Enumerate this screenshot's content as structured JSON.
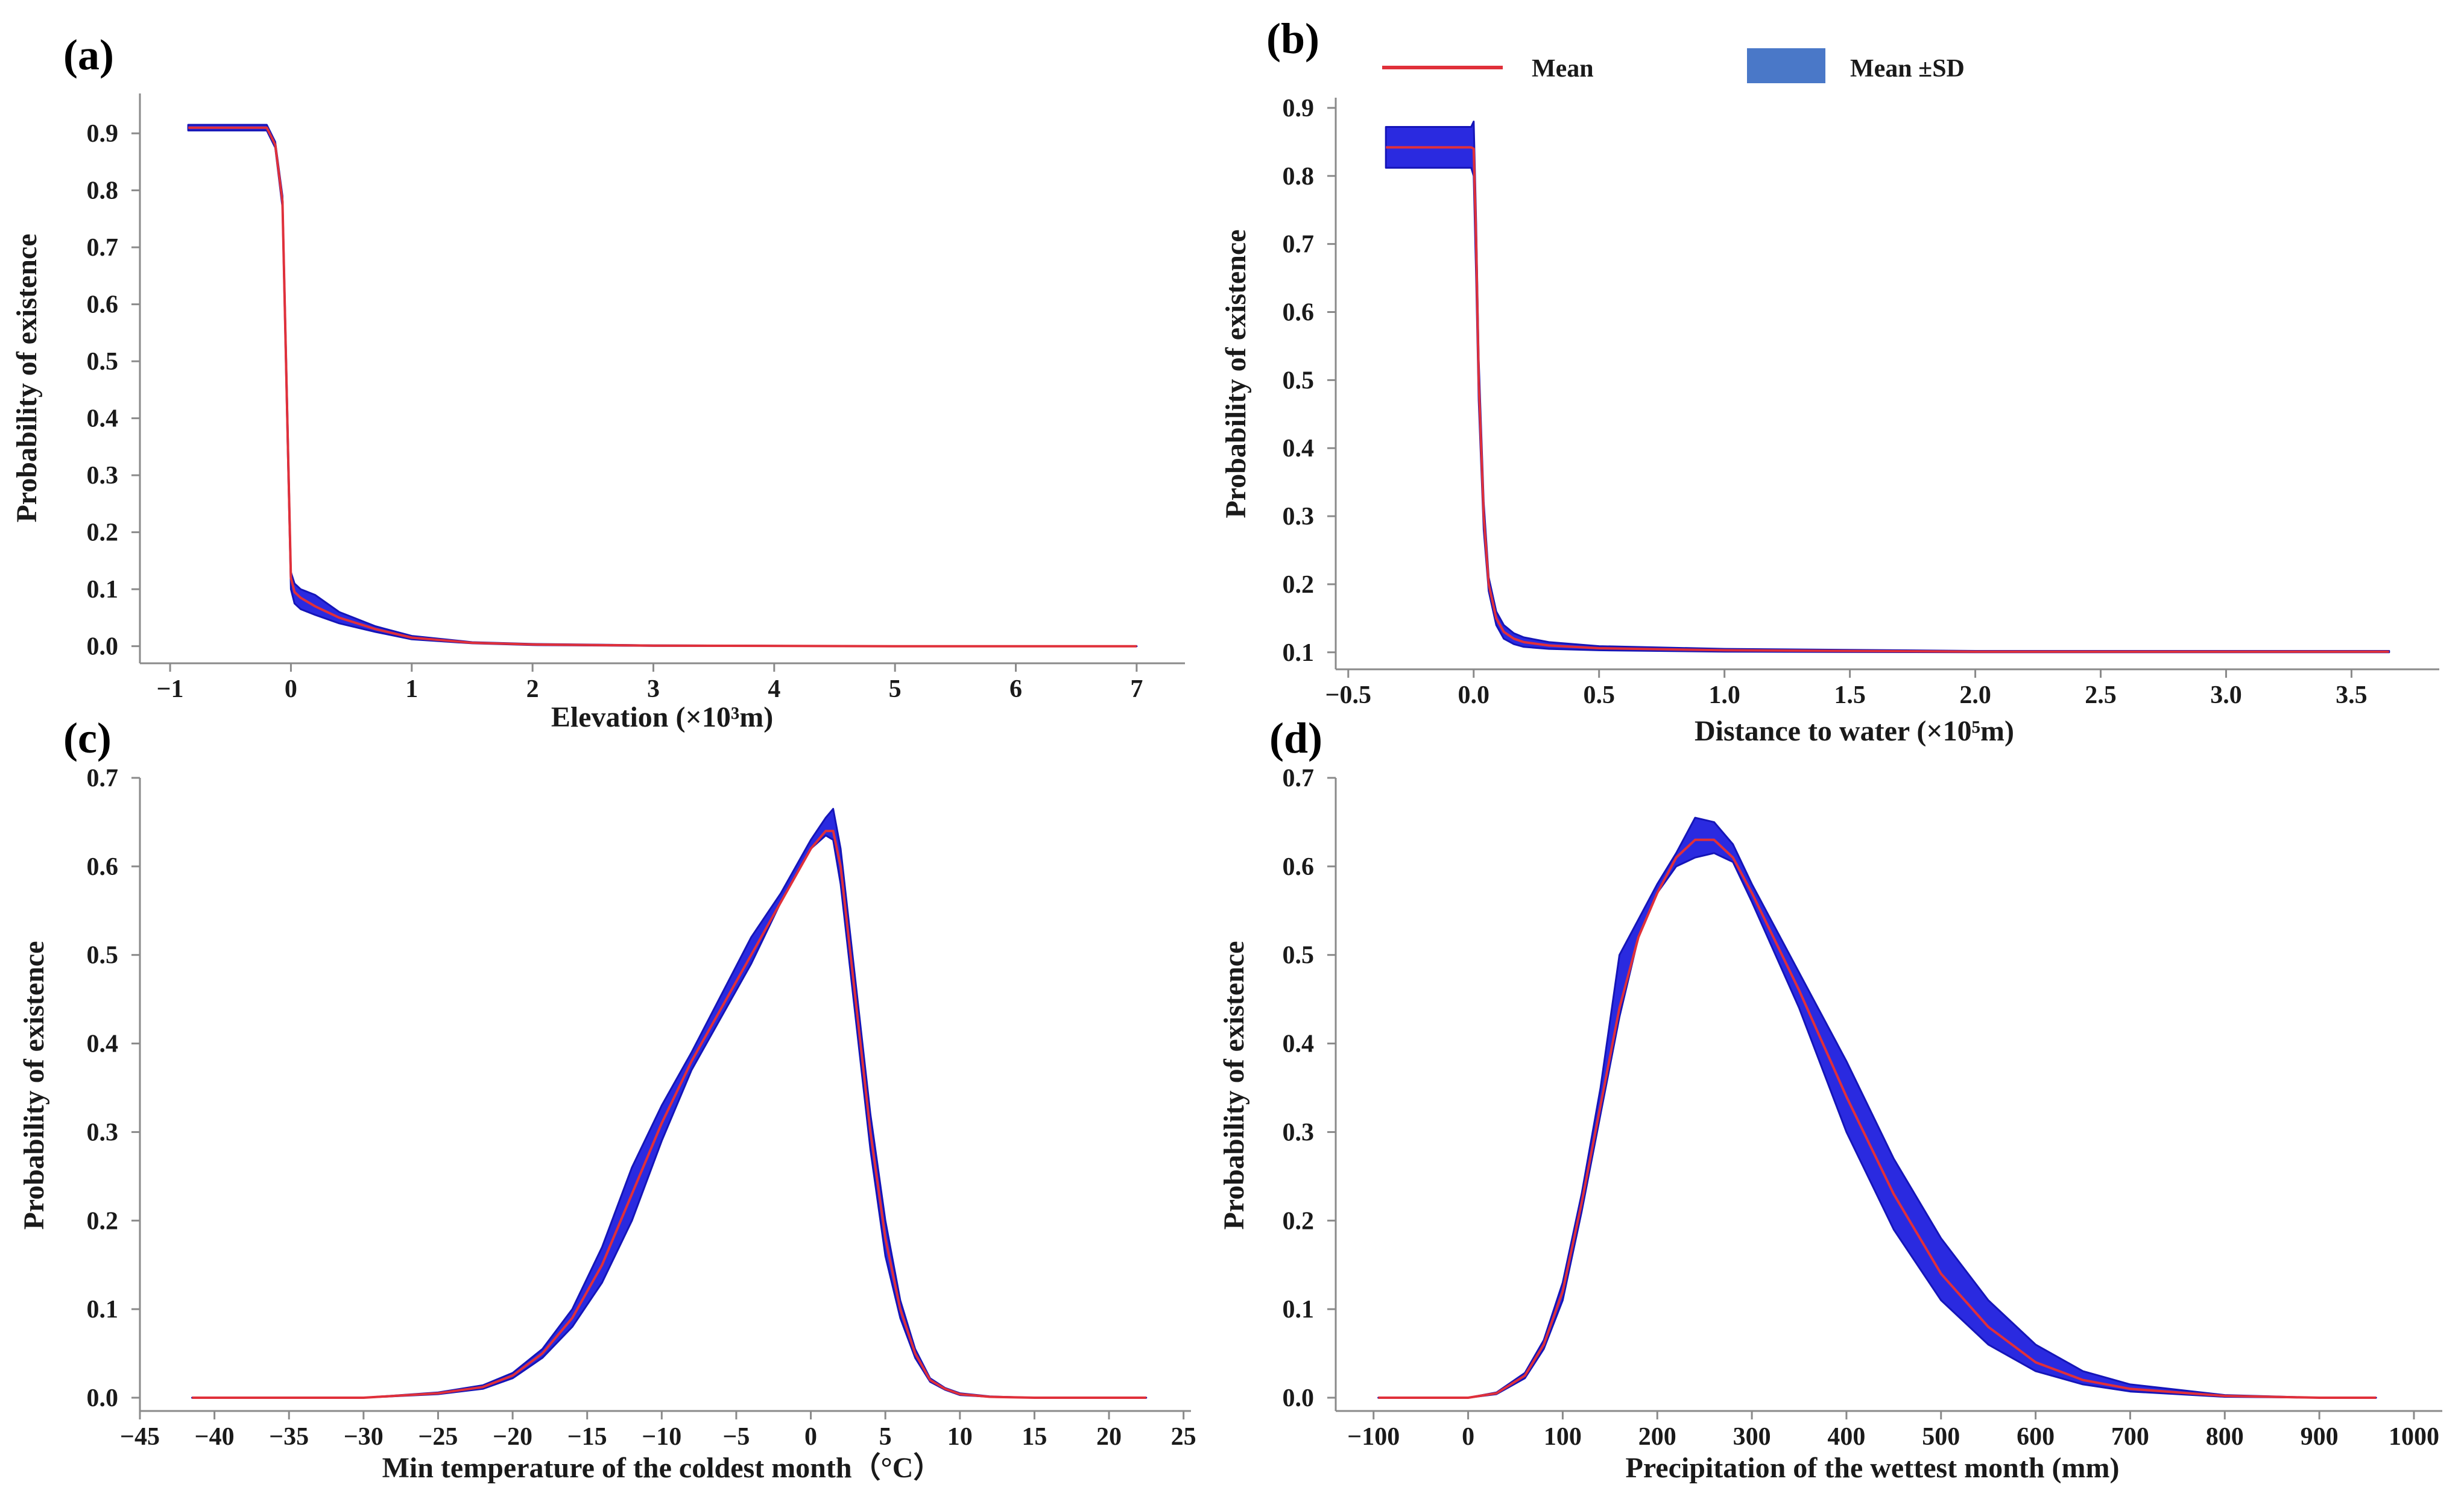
{
  "colors": {
    "mean_line": "#e0303a",
    "sd_band": "#2a2ae0",
    "sd_band_edge": "#1515b8",
    "legend_band": "#4a78c8"
  },
  "legend": {
    "mean_label": "Mean",
    "sd_label": "Mean ±SD"
  },
  "chart_data": [
    {
      "id": "a",
      "panel_label": "(a)",
      "type": "area",
      "xlabel": "Elevation (×10³m)",
      "ylabel": "Probability of existence",
      "xlim": [
        -1.25,
        7.4
      ],
      "ylim": [
        -0.03,
        0.97
      ],
      "xticks": [
        -1,
        0,
        1,
        2,
        3,
        4,
        5,
        6,
        7
      ],
      "xtick_labels": [
        "−1",
        "0",
        "1",
        "2",
        "3",
        "4",
        "5",
        "6",
        "7"
      ],
      "yticks": [
        0.0,
        0.1,
        0.2,
        0.3,
        0.4,
        0.5,
        0.6,
        0.7,
        0.8,
        0.9
      ],
      "ytick_labels": [
        "0.0",
        "0.1",
        "0.2",
        "0.3",
        "0.4",
        "0.5",
        "0.6",
        "0.7",
        "0.8",
        "0.9"
      ],
      "series": [
        {
          "name": "Mean",
          "x": [
            -0.85,
            -0.5,
            -0.2,
            -0.13,
            -0.07,
            -0.03,
            0.0,
            0.03,
            0.08,
            0.2,
            0.4,
            0.7,
            1.0,
            1.5,
            2.0,
            3.0,
            5.0,
            7.0
          ],
          "mean": [
            0.91,
            0.91,
            0.91,
            0.88,
            0.78,
            0.4,
            0.12,
            0.095,
            0.085,
            0.07,
            0.05,
            0.03,
            0.015,
            0.006,
            0.003,
            0.001,
            0.0,
            0.0
          ],
          "lower": [
            0.905,
            0.905,
            0.905,
            0.875,
            0.77,
            0.38,
            0.1,
            0.075,
            0.065,
            0.055,
            0.04,
            0.025,
            0.012,
            0.005,
            0.002,
            0.0005,
            0.0,
            0.0
          ],
          "upper": [
            0.915,
            0.915,
            0.915,
            0.885,
            0.79,
            0.42,
            0.13,
            0.11,
            0.1,
            0.09,
            0.06,
            0.035,
            0.018,
            0.007,
            0.004,
            0.0015,
            0.0,
            0.0
          ]
        }
      ]
    },
    {
      "id": "b",
      "panel_label": "(b)",
      "type": "area",
      "xlabel": "Distance to water (×10⁵m)",
      "ylabel": "Probability of existence",
      "xlim": [
        -0.55,
        3.85
      ],
      "ylim": [
        0.075,
        0.915
      ],
      "xticks": [
        -0.5,
        0.0,
        0.5,
        1.0,
        1.5,
        2.0,
        2.5,
        3.0,
        3.5
      ],
      "xtick_labels": [
        "−0.5",
        "0.0",
        "0.5",
        "1.0",
        "1.5",
        "2.0",
        "2.5",
        "3.0",
        "3.5"
      ],
      "yticks": [
        0.1,
        0.2,
        0.3,
        0.4,
        0.5,
        0.6,
        0.7,
        0.8,
        0.9
      ],
      "ytick_labels": [
        "0.1",
        "0.2",
        "0.3",
        "0.4",
        "0.5",
        "0.6",
        "0.7",
        "0.8",
        "0.9"
      ],
      "series": [
        {
          "name": "Mean",
          "x": [
            -0.35,
            -0.2,
            -0.05,
            -0.01,
            0.0,
            0.01,
            0.02,
            0.04,
            0.06,
            0.09,
            0.12,
            0.16,
            0.2,
            0.3,
            0.5,
            1.0,
            2.0,
            3.65
          ],
          "mean": [
            0.842,
            0.842,
            0.842,
            0.842,
            0.84,
            0.7,
            0.5,
            0.3,
            0.2,
            0.15,
            0.13,
            0.12,
            0.115,
            0.11,
            0.106,
            0.103,
            0.101,
            0.101
          ],
          "lower": [
            0.812,
            0.812,
            0.812,
            0.812,
            0.8,
            0.65,
            0.47,
            0.28,
            0.19,
            0.14,
            0.12,
            0.112,
            0.108,
            0.105,
            0.103,
            0.101,
            0.1,
            0.1
          ],
          "upper": [
            0.872,
            0.872,
            0.872,
            0.872,
            0.88,
            0.73,
            0.53,
            0.32,
            0.21,
            0.16,
            0.14,
            0.128,
            0.122,
            0.115,
            0.109,
            0.105,
            0.102,
            0.102
          ]
        }
      ]
    },
    {
      "id": "c",
      "panel_label": "(c)",
      "type": "area",
      "xlabel": "Min temperature of the coldest month（°C）",
      "ylabel": "Probability of existence",
      "xlim": [
        -45,
        25.5
      ],
      "ylim": [
        -0.015,
        0.7
      ],
      "xticks": [
        -45,
        -40,
        -35,
        -30,
        -25,
        -20,
        -15,
        -10,
        -5,
        0,
        5,
        10,
        15,
        20,
        25
      ],
      "xtick_labels": [
        "−45",
        "−40",
        "−35",
        "−30",
        "−25",
        "−20",
        "−15",
        "−10",
        "−5",
        "0",
        "5",
        "10",
        "15",
        "20",
        "25"
      ],
      "yticks": [
        0.0,
        0.1,
        0.2,
        0.3,
        0.4,
        0.5,
        0.6,
        0.7
      ],
      "ytick_labels": [
        "0.0",
        "0.1",
        "0.2",
        "0.3",
        "0.4",
        "0.5",
        "0.6",
        "0.7"
      ],
      "series": [
        {
          "name": "Mean",
          "x": [
            -41.5,
            -30,
            -25,
            -22,
            -20,
            -18,
            -16,
            -14,
            -12,
            -10,
            -8,
            -6,
            -4,
            -2,
            0,
            1,
            1.5,
            2,
            3,
            4,
            5,
            6,
            7,
            8,
            9,
            10,
            12,
            15,
            22.5
          ],
          "mean": [
            0.0,
            0.0,
            0.005,
            0.012,
            0.025,
            0.05,
            0.09,
            0.15,
            0.23,
            0.31,
            0.38,
            0.44,
            0.5,
            0.56,
            0.62,
            0.64,
            0.64,
            0.6,
            0.45,
            0.3,
            0.18,
            0.1,
            0.05,
            0.02,
            0.01,
            0.004,
            0.001,
            0.0,
            0.0
          ],
          "lower": [
            0.0,
            0.0,
            0.004,
            0.01,
            0.022,
            0.045,
            0.08,
            0.13,
            0.2,
            0.29,
            0.37,
            0.43,
            0.49,
            0.56,
            0.62,
            0.635,
            0.63,
            0.58,
            0.43,
            0.28,
            0.16,
            0.09,
            0.045,
            0.018,
            0.009,
            0.003,
            0.001,
            0.0,
            0.0
          ],
          "upper": [
            0.0,
            0.0,
            0.006,
            0.014,
            0.028,
            0.055,
            0.1,
            0.17,
            0.26,
            0.33,
            0.39,
            0.455,
            0.52,
            0.57,
            0.63,
            0.655,
            0.665,
            0.62,
            0.47,
            0.32,
            0.2,
            0.11,
            0.055,
            0.022,
            0.011,
            0.005,
            0.0015,
            0.0,
            0.0
          ]
        }
      ]
    },
    {
      "id": "d",
      "panel_label": "(d)",
      "type": "area",
      "xlabel": "Precipitation of the wettest month (mm)",
      "ylabel": "Probability of existence",
      "xlim": [
        -140,
        1030
      ],
      "ylim": [
        -0.015,
        0.7
      ],
      "xticks": [
        -100,
        0,
        100,
        200,
        300,
        400,
        500,
        600,
        700,
        800,
        900,
        1000
      ],
      "xtick_labels": [
        "−100",
        "0",
        "100",
        "200",
        "300",
        "400",
        "500",
        "600",
        "700",
        "800",
        "900",
        "1000"
      ],
      "yticks": [
        0.0,
        0.1,
        0.2,
        0.3,
        0.4,
        0.5,
        0.6,
        0.7
      ],
      "ytick_labels": [
        "0.0",
        "0.1",
        "0.2",
        "0.3",
        "0.4",
        "0.5",
        "0.6",
        "0.7"
      ],
      "series": [
        {
          "name": "Mean",
          "x": [
            -95,
            0,
            30,
            60,
            80,
            100,
            120,
            140,
            160,
            180,
            200,
            220,
            240,
            260,
            280,
            300,
            350,
            400,
            450,
            500,
            550,
            600,
            650,
            700,
            800,
            900,
            960
          ],
          "mean": [
            0.0,
            0.0,
            0.005,
            0.025,
            0.06,
            0.12,
            0.22,
            0.33,
            0.44,
            0.52,
            0.57,
            0.61,
            0.63,
            0.63,
            0.61,
            0.57,
            0.46,
            0.34,
            0.23,
            0.14,
            0.08,
            0.04,
            0.02,
            0.01,
            0.002,
            0.0,
            0.0
          ],
          "lower": [
            0.0,
            0.0,
            0.004,
            0.022,
            0.055,
            0.11,
            0.21,
            0.32,
            0.43,
            0.52,
            0.57,
            0.6,
            0.61,
            0.615,
            0.605,
            0.56,
            0.44,
            0.3,
            0.19,
            0.11,
            0.06,
            0.03,
            0.015,
            0.007,
            0.001,
            0.0,
            0.0
          ],
          "upper": [
            0.0,
            0.0,
            0.006,
            0.028,
            0.065,
            0.13,
            0.23,
            0.35,
            0.5,
            0.54,
            0.58,
            0.615,
            0.655,
            0.65,
            0.625,
            0.58,
            0.48,
            0.38,
            0.27,
            0.18,
            0.11,
            0.06,
            0.03,
            0.015,
            0.003,
            0.0,
            0.0
          ]
        }
      ]
    }
  ]
}
